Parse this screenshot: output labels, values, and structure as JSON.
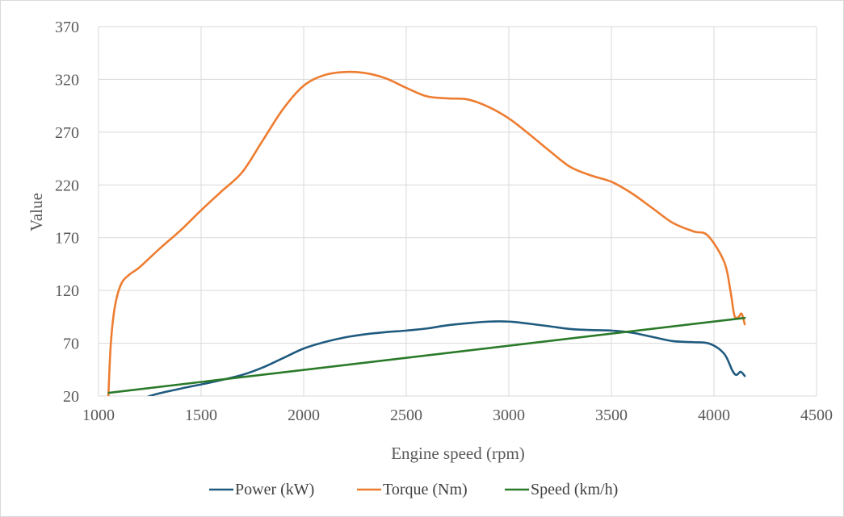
{
  "chart_data": {
    "type": "line",
    "title": "",
    "xlabel": "Engine speed (rpm)",
    "ylabel": "Value",
    "xlim": [
      1000,
      4500
    ],
    "ylim": [
      20,
      370
    ],
    "x_ticks": [
      1000,
      1500,
      2000,
      2500,
      3000,
      3500,
      4000,
      4500
    ],
    "y_ticks": [
      20,
      70,
      120,
      170,
      220,
      270,
      320,
      370
    ],
    "grid": "both",
    "legend_position": "bottom",
    "series": [
      {
        "name": "Power (kW)",
        "color": "#1f5b7f",
        "points": [
          [
            1150,
            10
          ],
          [
            1250,
            20
          ],
          [
            1400,
            27
          ],
          [
            1550,
            33
          ],
          [
            1700,
            40
          ],
          [
            1800,
            47
          ],
          [
            1900,
            56
          ],
          [
            2000,
            65
          ],
          [
            2100,
            71
          ],
          [
            2200,
            75.5
          ],
          [
            2300,
            78.5
          ],
          [
            2400,
            80.5
          ],
          [
            2500,
            82
          ],
          [
            2600,
            84
          ],
          [
            2700,
            87
          ],
          [
            2800,
            89
          ],
          [
            2900,
            90.5
          ],
          [
            3000,
            90.5
          ],
          [
            3100,
            88.5
          ],
          [
            3200,
            86
          ],
          [
            3300,
            83.5
          ],
          [
            3400,
            82.5
          ],
          [
            3500,
            82
          ],
          [
            3600,
            80
          ],
          [
            3700,
            76
          ],
          [
            3800,
            72
          ],
          [
            3900,
            71
          ],
          [
            3980,
            69.5
          ],
          [
            4050,
            60
          ],
          [
            4090,
            44
          ],
          [
            4110,
            40
          ],
          [
            4130,
            43
          ],
          [
            4150,
            39
          ]
        ]
      },
      {
        "name": "Torque (Nm)",
        "color": "#ed7d31",
        "points": [
          [
            1048,
            20
          ],
          [
            1060,
            70
          ],
          [
            1080,
            105
          ],
          [
            1110,
            126
          ],
          [
            1150,
            135
          ],
          [
            1200,
            142
          ],
          [
            1300,
            160
          ],
          [
            1400,
            177
          ],
          [
            1500,
            196
          ],
          [
            1600,
            214
          ],
          [
            1700,
            232
          ],
          [
            1800,
            262
          ],
          [
            1900,
            292
          ],
          [
            2000,
            314
          ],
          [
            2100,
            324
          ],
          [
            2200,
            327
          ],
          [
            2300,
            326
          ],
          [
            2400,
            321
          ],
          [
            2500,
            312
          ],
          [
            2600,
            304
          ],
          [
            2700,
            302
          ],
          [
            2800,
            301
          ],
          [
            2900,
            294
          ],
          [
            3000,
            283
          ],
          [
            3100,
            268
          ],
          [
            3200,
            252
          ],
          [
            3300,
            237
          ],
          [
            3400,
            229
          ],
          [
            3500,
            223
          ],
          [
            3600,
            212
          ],
          [
            3700,
            198
          ],
          [
            3800,
            184
          ],
          [
            3900,
            176
          ],
          [
            3970,
            172
          ],
          [
            4050,
            147
          ],
          [
            4080,
            120
          ],
          [
            4100,
            96
          ],
          [
            4120,
            95
          ],
          [
            4135,
            98
          ],
          [
            4150,
            88
          ]
        ]
      },
      {
        "name": "Speed (km/h)",
        "color": "#2a7a2a",
        "points": [
          [
            1050,
            23
          ],
          [
            4150,
            94
          ]
        ]
      }
    ]
  }
}
